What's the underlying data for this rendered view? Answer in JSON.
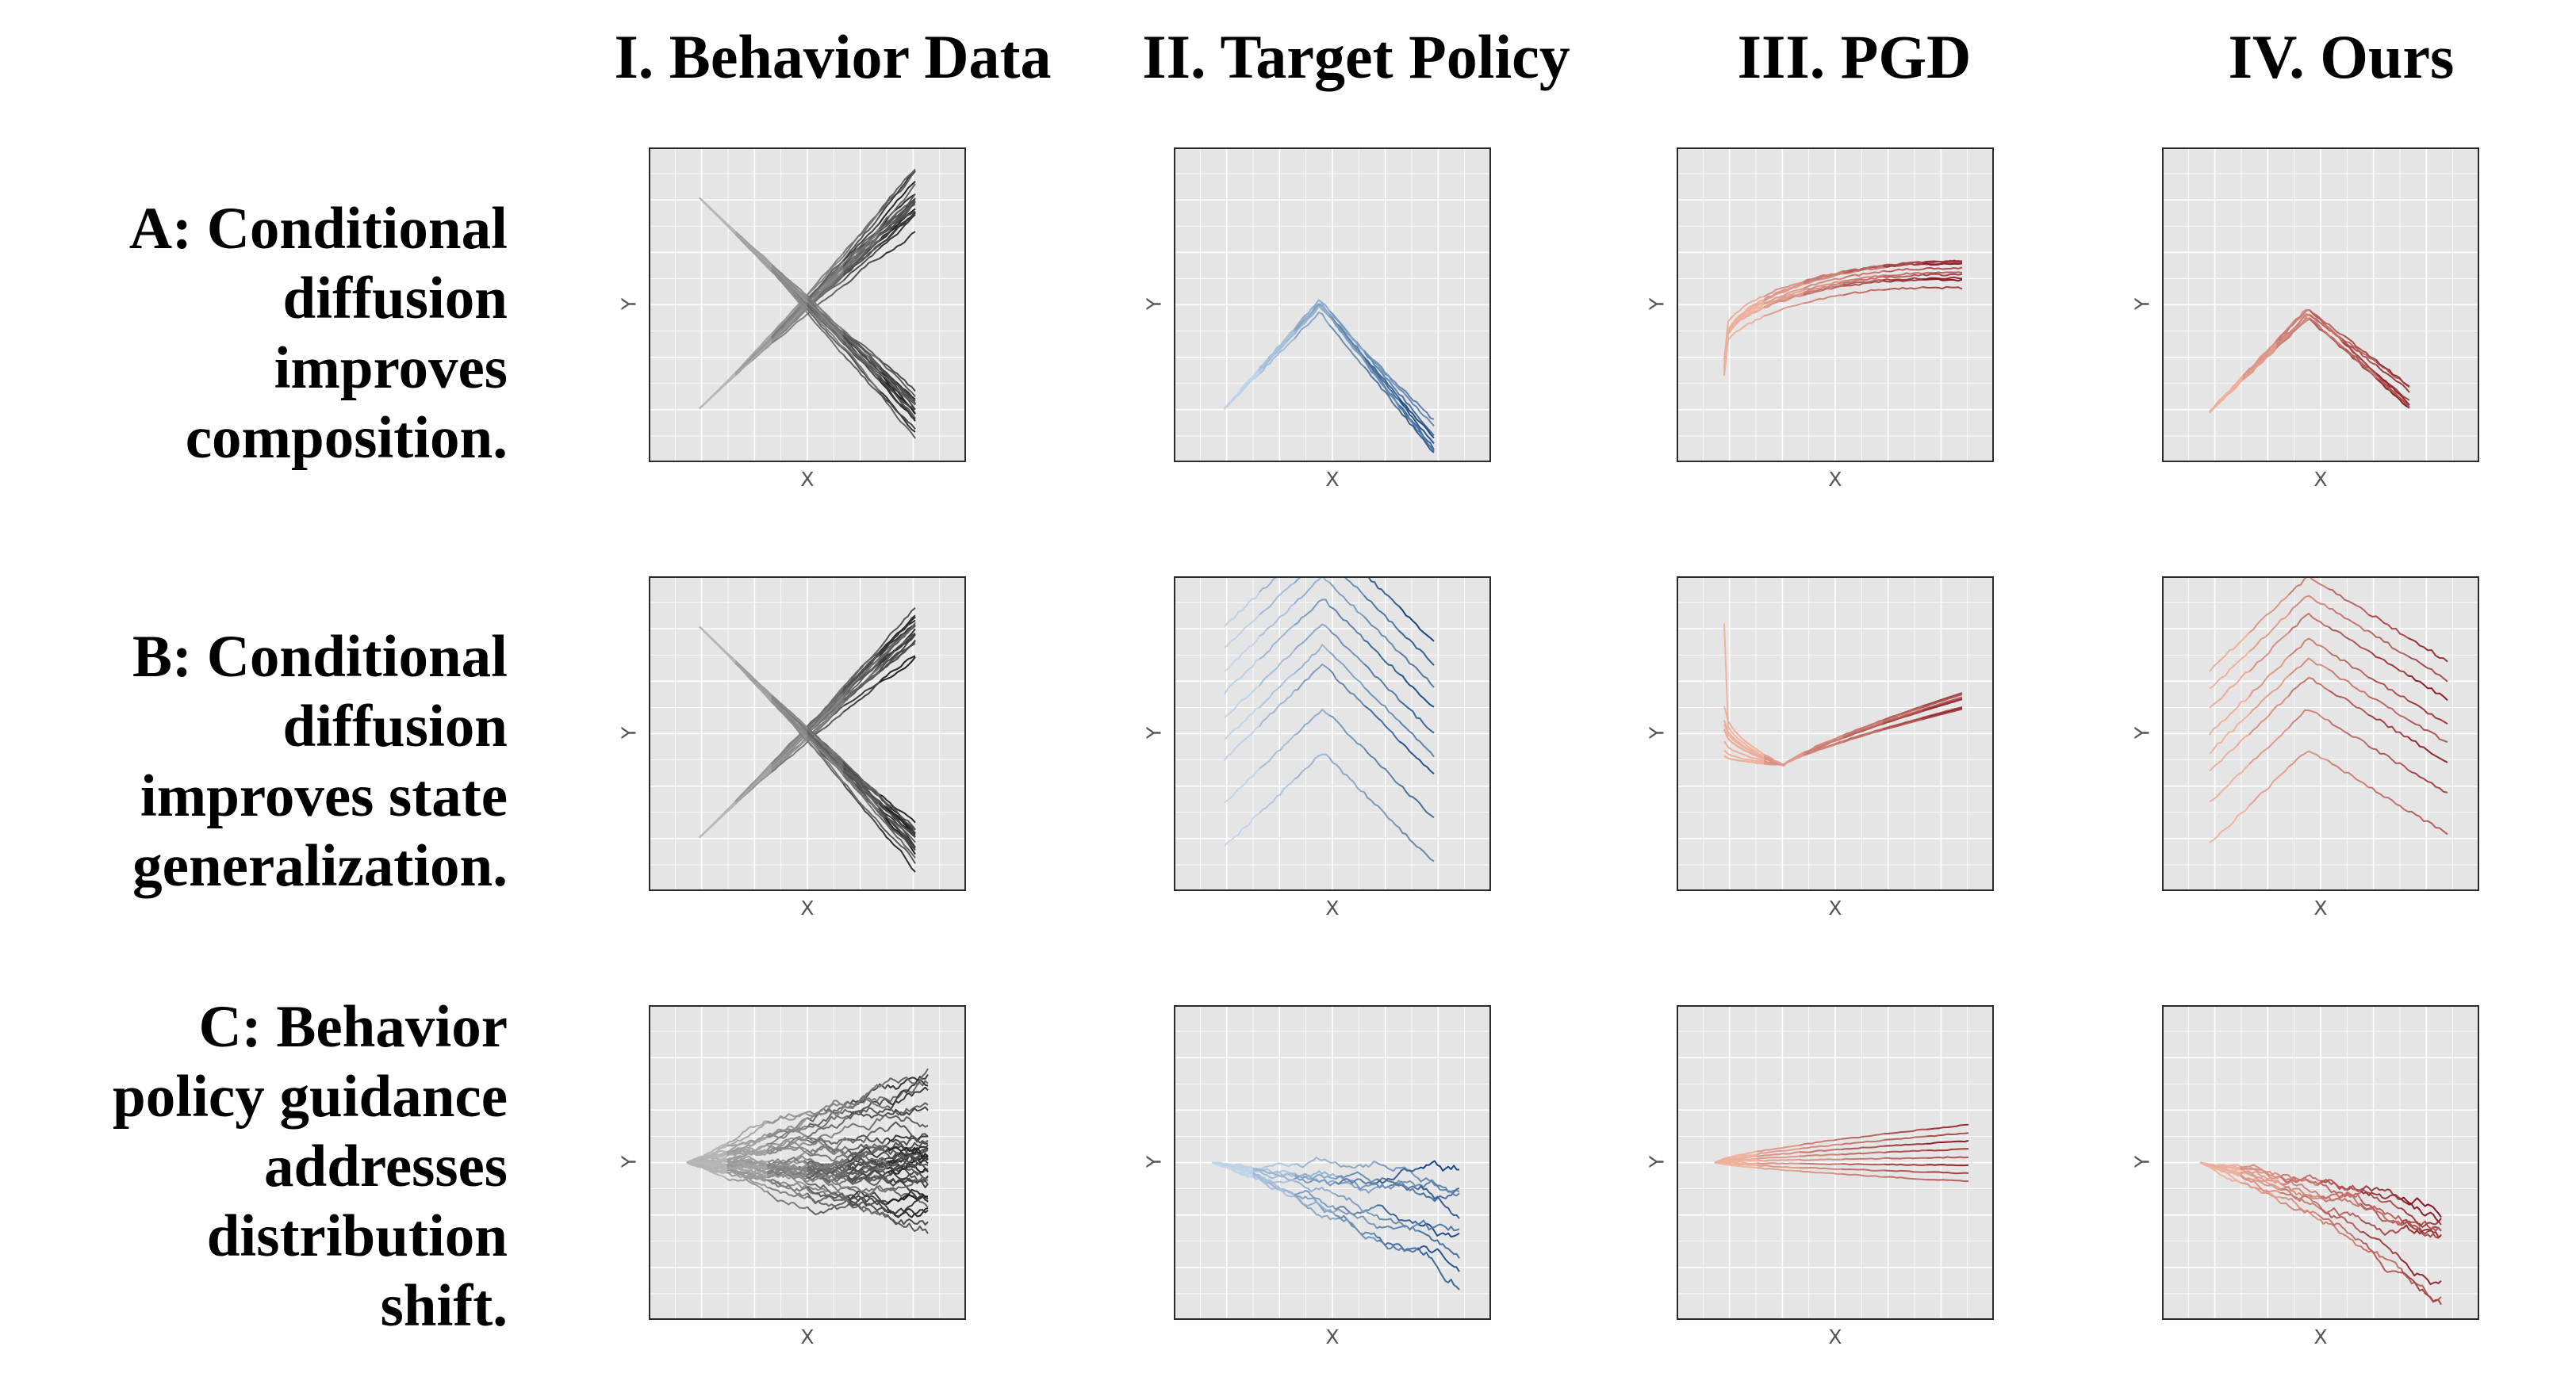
{
  "column_titles": [
    "I. Behavior Data",
    "II. Target Policy",
    "III. PGD",
    "IV. Ours"
  ],
  "rows": [
    {
      "id": "A",
      "label_lines": [
        "A: Conditional",
        "diffusion",
        "improves",
        "composition."
      ]
    },
    {
      "id": "B",
      "label_lines": [
        "B: Conditional",
        "diffusion",
        "improves state",
        "generalization."
      ]
    },
    {
      "id": "C",
      "label_lines": [
        "C: Behavior",
        "policy guidance",
        "addresses",
        "distribution",
        "shift."
      ]
    }
  ],
  "axis_labels": {
    "x": "X",
    "y": "Y"
  },
  "colors": {
    "panel_background": "#e5e5e5",
    "grid": "#ffffff",
    "behavior": [
      "#c9c9c9",
      "#1a1a1a"
    ],
    "target": [
      "#d6e7f6",
      "#0d3f7a"
    ],
    "pgd": [
      "#fcc5ad",
      "#7e0f1c"
    ],
    "ours": [
      "#fcc5ad",
      "#7e0f1c"
    ]
  },
  "chart_data": [
    {
      "type": "line",
      "row": "A",
      "column": "I. Behavior Data",
      "xlabel": "X",
      "ylabel": "Y",
      "xlim": [
        0,
        1
      ],
      "ylim": [
        0,
        1
      ],
      "grid": true,
      "series": [
        {
          "pattern": "x-cross",
          "count": 40,
          "x": [
            0.16,
            0.84
          ],
          "y_rise": [
            0.17,
            0.83
          ],
          "y_fall": [
            0.84,
            0.17
          ]
        }
      ]
    },
    {
      "type": "line",
      "row": "A",
      "column": "II. Target Policy",
      "xlabel": "X",
      "ylabel": "Y",
      "xlim": [
        0,
        1
      ],
      "ylim": [
        0,
        1
      ],
      "grid": true,
      "series": [
        {
          "pattern": "caret",
          "count": 8,
          "x": [
            0.16,
            0.46,
            0.82
          ],
          "y": [
            0.17,
            0.5,
            0.08
          ]
        }
      ]
    },
    {
      "type": "line",
      "row": "A",
      "column": "III. PGD",
      "xlabel": "X",
      "ylabel": "Y",
      "xlim": [
        0,
        1
      ],
      "ylim": [
        0,
        1
      ],
      "grid": true,
      "series": [
        {
          "pattern": "rising-curve",
          "count": 10,
          "x": [
            0.15,
            0.9
          ],
          "y_start": 0.37,
          "y_end": 0.59,
          "start_spread": 0.08
        }
      ]
    },
    {
      "type": "line",
      "row": "A",
      "column": "IV. Ours",
      "xlabel": "X",
      "ylabel": "Y",
      "xlim": [
        0,
        1
      ],
      "ylim": [
        0,
        1
      ],
      "grid": true,
      "series": [
        {
          "pattern": "caret",
          "count": 8,
          "x": [
            0.15,
            0.46,
            0.78
          ],
          "y": [
            0.16,
            0.48,
            0.19
          ]
        }
      ]
    },
    {
      "type": "line",
      "row": "B",
      "column": "I. Behavior Data",
      "xlabel": "X",
      "ylabel": "Y",
      "xlim": [
        0,
        1
      ],
      "ylim": [
        0,
        1
      ],
      "grid": true,
      "series": [
        {
          "pattern": "x-cross",
          "count": 40,
          "x": [
            0.16,
            0.84
          ],
          "y_rise": [
            0.17,
            0.83
          ],
          "y_fall": [
            0.84,
            0.17
          ]
        }
      ]
    },
    {
      "type": "line",
      "row": "B",
      "column": "II. Target Policy",
      "xlabel": "X",
      "ylabel": "Y",
      "xlim": [
        0,
        1
      ],
      "ylim": [
        0,
        1
      ],
      "grid": true,
      "series": [
        {
          "pattern": "stacked-carets",
          "count": 9,
          "x": [
            0.16,
            0.47,
            0.82
          ],
          "apex_y": [
            0.44,
            0.58,
            0.72,
            0.78,
            0.85,
            0.93,
            1.0,
            1.07,
            1.14
          ],
          "drop": 0.35
        }
      ]
    },
    {
      "type": "line",
      "row": "B",
      "column": "III. PGD",
      "xlabel": "X",
      "ylabel": "Y",
      "xlim": [
        0,
        1
      ],
      "ylim": [
        0,
        1
      ],
      "grid": true,
      "series": [
        {
          "pattern": "dip-then-rise",
          "count": 10,
          "x": [
            0.15,
            0.9
          ],
          "y_start": 0.5,
          "y_dip": 0.4,
          "y_end": 0.6
        }
      ]
    },
    {
      "type": "line",
      "row": "B",
      "column": "IV. Ours",
      "xlabel": "X",
      "ylabel": "Y",
      "xlim": [
        0,
        1
      ],
      "ylim": [
        0,
        1
      ],
      "grid": true,
      "series": [
        {
          "pattern": "stacked-carets",
          "count": 8,
          "x": [
            0.15,
            0.46,
            0.9
          ],
          "apex_y": [
            0.45,
            0.58,
            0.68,
            0.74,
            0.8,
            0.88,
            0.94,
            1.0
          ],
          "drop": 0.27
        }
      ]
    },
    {
      "type": "line",
      "row": "C",
      "column": "I. Behavior Data",
      "xlabel": "X",
      "ylabel": "Y",
      "xlim": [
        0,
        1
      ],
      "ylim": [
        0,
        1
      ],
      "grid": true,
      "series": [
        {
          "pattern": "random-walk-fan",
          "count": 40,
          "x": [
            0.12,
            0.88
          ],
          "y_start": 0.5,
          "drift": 0.04,
          "spread": 0.22
        }
      ]
    },
    {
      "type": "line",
      "row": "C",
      "column": "II. Target Policy",
      "xlabel": "X",
      "ylabel": "Y",
      "xlim": [
        0,
        1
      ],
      "ylim": [
        0,
        1
      ],
      "grid": true,
      "series": [
        {
          "pattern": "random-walk-fan",
          "count": 10,
          "x": [
            0.12,
            0.9
          ],
          "y_start": 0.5,
          "drift": -0.18,
          "spread": 0.08
        }
      ]
    },
    {
      "type": "line",
      "row": "C",
      "column": "III. PGD",
      "xlabel": "X",
      "ylabel": "Y",
      "xlim": [
        0,
        1
      ],
      "ylim": [
        0,
        1
      ],
      "grid": true,
      "series": [
        {
          "pattern": "smooth-fan",
          "count": 8,
          "x": [
            0.12,
            0.92
          ],
          "y_start": 0.5,
          "y_end_range": [
            0.44,
            0.62
          ]
        }
      ]
    },
    {
      "type": "line",
      "row": "C",
      "column": "IV. Ours",
      "xlabel": "X",
      "ylabel": "Y",
      "xlim": [
        0,
        1
      ],
      "ylim": [
        0,
        1
      ],
      "grid": true,
      "series": [
        {
          "pattern": "random-walk-fan",
          "count": 10,
          "x": [
            0.12,
            0.88
          ],
          "y_start": 0.5,
          "drift": -0.26,
          "spread": 0.08
        }
      ]
    }
  ]
}
